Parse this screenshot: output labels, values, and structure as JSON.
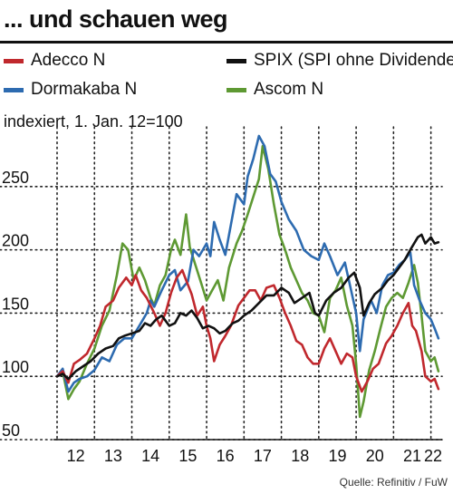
{
  "title": "... und schauen weg",
  "source": "Quelle: Refinitiv / FuW",
  "chart_data": {
    "type": "line",
    "subtitle": "indexiert, 1. Jan. 12=100",
    "xlabel": "",
    "ylabel": "",
    "x_ticks": [
      "12",
      "13",
      "14",
      "15",
      "16",
      "17",
      "18",
      "19",
      "20",
      "21",
      "22"
    ],
    "y_ticks": [
      50,
      100,
      150,
      200,
      250
    ],
    "ylim": [
      50,
      290
    ],
    "xlim": [
      2012,
      2022.3
    ],
    "grid": "dotted",
    "legend_position": "top",
    "series": [
      {
        "name": "Adecco N",
        "color": "#c0282d",
        "points": [
          [
            2012.0,
            100
          ],
          [
            2012.15,
            104
          ],
          [
            2012.3,
            95
          ],
          [
            2012.45,
            110
          ],
          [
            2012.6,
            113
          ],
          [
            2012.8,
            118
          ],
          [
            2013.0,
            130
          ],
          [
            2013.15,
            140
          ],
          [
            2013.3,
            155
          ],
          [
            2013.5,
            160
          ],
          [
            2013.65,
            170
          ],
          [
            2013.85,
            178
          ],
          [
            2014.0,
            172
          ],
          [
            2014.1,
            180
          ],
          [
            2014.25,
            168
          ],
          [
            2014.4,
            162
          ],
          [
            2014.6,
            150
          ],
          [
            2014.75,
            140
          ],
          [
            2014.9,
            150
          ],
          [
            2015.05,
            166
          ],
          [
            2015.2,
            178
          ],
          [
            2015.35,
            184
          ],
          [
            2015.45,
            176
          ],
          [
            2015.6,
            165
          ],
          [
            2015.75,
            148
          ],
          [
            2015.9,
            155
          ],
          [
            2016.0,
            140
          ],
          [
            2016.1,
            130
          ],
          [
            2016.2,
            112
          ],
          [
            2016.35,
            125
          ],
          [
            2016.5,
            132
          ],
          [
            2016.65,
            140
          ],
          [
            2016.85,
            156
          ],
          [
            2017.0,
            162
          ],
          [
            2017.15,
            168
          ],
          [
            2017.3,
            168
          ],
          [
            2017.45,
            160
          ],
          [
            2017.6,
            170
          ],
          [
            2017.8,
            172
          ],
          [
            2017.95,
            162
          ],
          [
            2018.1,
            150
          ],
          [
            2018.25,
            140
          ],
          [
            2018.4,
            128
          ],
          [
            2018.55,
            125
          ],
          [
            2018.7,
            115
          ],
          [
            2018.85,
            110
          ],
          [
            2019.0,
            110
          ],
          [
            2019.15,
            122
          ],
          [
            2019.3,
            130
          ],
          [
            2019.45,
            120
          ],
          [
            2019.6,
            110
          ],
          [
            2019.75,
            118
          ],
          [
            2019.9,
            115
          ],
          [
            2020.0,
            100
          ],
          [
            2020.15,
            88
          ],
          [
            2020.3,
            96
          ],
          [
            2020.45,
            106
          ],
          [
            2020.6,
            110
          ],
          [
            2020.8,
            126
          ],
          [
            2020.95,
            132
          ],
          [
            2021.1,
            140
          ],
          [
            2021.25,
            150
          ],
          [
            2021.4,
            158
          ],
          [
            2021.5,
            140
          ],
          [
            2021.6,
            136
          ],
          [
            2021.75,
            120
          ],
          [
            2021.85,
            100
          ],
          [
            2022.0,
            96
          ],
          [
            2022.1,
            98
          ],
          [
            2022.2,
            90
          ]
        ]
      },
      {
        "name": "Dormakaba N",
        "color": "#2d6bb0",
        "points": [
          [
            2012.0,
            100
          ],
          [
            2012.15,
            106
          ],
          [
            2012.3,
            88
          ],
          [
            2012.45,
            95
          ],
          [
            2012.6,
            98
          ],
          [
            2012.8,
            100
          ],
          [
            2013.0,
            105
          ],
          [
            2013.2,
            115
          ],
          [
            2013.4,
            112
          ],
          [
            2013.6,
            125
          ],
          [
            2013.8,
            130
          ],
          [
            2014.0,
            130
          ],
          [
            2014.2,
            140
          ],
          [
            2014.4,
            150
          ],
          [
            2014.5,
            160
          ],
          [
            2014.6,
            155
          ],
          [
            2014.8,
            168
          ],
          [
            2015.0,
            180
          ],
          [
            2015.15,
            184
          ],
          [
            2015.3,
            168
          ],
          [
            2015.5,
            175
          ],
          [
            2015.65,
            200
          ],
          [
            2015.8,
            195
          ],
          [
            2016.0,
            205
          ],
          [
            2016.1,
            195
          ],
          [
            2016.2,
            222
          ],
          [
            2016.35,
            208
          ],
          [
            2016.5,
            196
          ],
          [
            2016.65,
            220
          ],
          [
            2016.8,
            244
          ],
          [
            2017.0,
            236
          ],
          [
            2017.1,
            258
          ],
          [
            2017.25,
            272
          ],
          [
            2017.4,
            290
          ],
          [
            2017.55,
            282
          ],
          [
            2017.7,
            260
          ],
          [
            2017.85,
            254
          ],
          [
            2018.0,
            238
          ],
          [
            2018.2,
            224
          ],
          [
            2018.4,
            215
          ],
          [
            2018.6,
            200
          ],
          [
            2018.8,
            195
          ],
          [
            2019.0,
            192
          ],
          [
            2019.15,
            205
          ],
          [
            2019.3,
            195
          ],
          [
            2019.5,
            180
          ],
          [
            2019.7,
            190
          ],
          [
            2019.85,
            170
          ],
          [
            2020.0,
            150
          ],
          [
            2020.1,
            120
          ],
          [
            2020.2,
            145
          ],
          [
            2020.4,
            160
          ],
          [
            2020.55,
            150
          ],
          [
            2020.7,
            172
          ],
          [
            2020.85,
            180
          ],
          [
            2021.0,
            182
          ],
          [
            2021.15,
            188
          ],
          [
            2021.3,
            192
          ],
          [
            2021.45,
            198
          ],
          [
            2021.55,
            172
          ],
          [
            2021.7,
            160
          ],
          [
            2021.85,
            150
          ],
          [
            2022.0,
            145
          ],
          [
            2022.1,
            138
          ],
          [
            2022.2,
            130
          ]
        ]
      },
      {
        "name": "SPIX (SPI ohne Dividende)",
        "color": "#111111",
        "points": [
          [
            2012.0,
            100
          ],
          [
            2012.15,
            102
          ],
          [
            2012.3,
            98
          ],
          [
            2012.5,
            104
          ],
          [
            2012.7,
            108
          ],
          [
            2012.9,
            112
          ],
          [
            2013.1,
            118
          ],
          [
            2013.3,
            122
          ],
          [
            2013.5,
            124
          ],
          [
            2013.65,
            130
          ],
          [
            2013.8,
            132
          ],
          [
            2014.0,
            134
          ],
          [
            2014.2,
            136
          ],
          [
            2014.35,
            142
          ],
          [
            2014.5,
            140
          ],
          [
            2014.65,
            145
          ],
          [
            2014.8,
            148
          ],
          [
            2015.0,
            140
          ],
          [
            2015.15,
            142
          ],
          [
            2015.3,
            150
          ],
          [
            2015.45,
            148
          ],
          [
            2015.6,
            152
          ],
          [
            2015.75,
            146
          ],
          [
            2015.9,
            138
          ],
          [
            2016.05,
            140
          ],
          [
            2016.2,
            138
          ],
          [
            2016.35,
            134
          ],
          [
            2016.5,
            136
          ],
          [
            2016.7,
            142
          ],
          [
            2016.85,
            144
          ],
          [
            2017.0,
            148
          ],
          [
            2017.2,
            152
          ],
          [
            2017.4,
            158
          ],
          [
            2017.6,
            164
          ],
          [
            2017.8,
            164
          ],
          [
            2018.0,
            170
          ],
          [
            2018.2,
            166
          ],
          [
            2018.35,
            158
          ],
          [
            2018.55,
            162
          ],
          [
            2018.75,
            166
          ],
          [
            2018.9,
            150
          ],
          [
            2019.0,
            148
          ],
          [
            2019.2,
            160
          ],
          [
            2019.4,
            166
          ],
          [
            2019.6,
            170
          ],
          [
            2019.8,
            178
          ],
          [
            2019.95,
            182
          ],
          [
            2020.1,
            170
          ],
          [
            2020.2,
            148
          ],
          [
            2020.35,
            158
          ],
          [
            2020.5,
            165
          ],
          [
            2020.7,
            170
          ],
          [
            2020.85,
            176
          ],
          [
            2021.0,
            180
          ],
          [
            2021.15,
            186
          ],
          [
            2021.3,
            192
          ],
          [
            2021.45,
            200
          ],
          [
            2021.55,
            205
          ],
          [
            2021.65,
            210
          ],
          [
            2021.75,
            212
          ],
          [
            2021.85,
            205
          ],
          [
            2022.0,
            210
          ],
          [
            2022.1,
            205
          ],
          [
            2022.2,
            206
          ]
        ]
      },
      {
        "name": "Ascom N",
        "color": "#5e9933",
        "points": [
          [
            2012.0,
            100
          ],
          [
            2012.15,
            104
          ],
          [
            2012.3,
            82
          ],
          [
            2012.45,
            90
          ],
          [
            2012.6,
            96
          ],
          [
            2012.8,
            110
          ],
          [
            2013.0,
            122
          ],
          [
            2013.2,
            140
          ],
          [
            2013.4,
            152
          ],
          [
            2013.6,
            180
          ],
          [
            2013.75,
            205
          ],
          [
            2013.9,
            200
          ],
          [
            2014.05,
            176
          ],
          [
            2014.2,
            186
          ],
          [
            2014.35,
            176
          ],
          [
            2014.5,
            162
          ],
          [
            2014.6,
            156
          ],
          [
            2014.75,
            172
          ],
          [
            2014.9,
            180
          ],
          [
            2015.05,
            200
          ],
          [
            2015.15,
            208
          ],
          [
            2015.3,
            196
          ],
          [
            2015.45,
            228
          ],
          [
            2015.55,
            202
          ],
          [
            2015.7,
            188
          ],
          [
            2015.85,
            174
          ],
          [
            2016.0,
            160
          ],
          [
            2016.15,
            168
          ],
          [
            2016.3,
            176
          ],
          [
            2016.45,
            160
          ],
          [
            2016.6,
            186
          ],
          [
            2016.8,
            205
          ],
          [
            2016.95,
            215
          ],
          [
            2017.1,
            228
          ],
          [
            2017.25,
            242
          ],
          [
            2017.4,
            256
          ],
          [
            2017.5,
            282
          ],
          [
            2017.65,
            264
          ],
          [
            2017.8,
            236
          ],
          [
            2017.95,
            212
          ],
          [
            2018.1,
            200
          ],
          [
            2018.25,
            186
          ],
          [
            2018.4,
            176
          ],
          [
            2018.55,
            166
          ],
          [
            2018.7,
            160
          ],
          [
            2018.85,
            150
          ],
          [
            2019.0,
            148
          ],
          [
            2019.15,
            135
          ],
          [
            2019.3,
            162
          ],
          [
            2019.45,
            168
          ],
          [
            2019.6,
            178
          ],
          [
            2019.75,
            156
          ],
          [
            2019.9,
            140
          ],
          [
            2020.0,
            110
          ],
          [
            2020.1,
            68
          ],
          [
            2020.2,
            80
          ],
          [
            2020.35,
            105
          ],
          [
            2020.5,
            120
          ],
          [
            2020.65,
            138
          ],
          [
            2020.8,
            155
          ],
          [
            2020.95,
            162
          ],
          [
            2021.1,
            166
          ],
          [
            2021.25,
            162
          ],
          [
            2021.4,
            174
          ],
          [
            2021.55,
            188
          ],
          [
            2021.65,
            174
          ],
          [
            2021.75,
            148
          ],
          [
            2021.85,
            120
          ],
          [
            2022.0,
            112
          ],
          [
            2022.1,
            115
          ],
          [
            2022.2,
            104
          ]
        ]
      }
    ]
  }
}
